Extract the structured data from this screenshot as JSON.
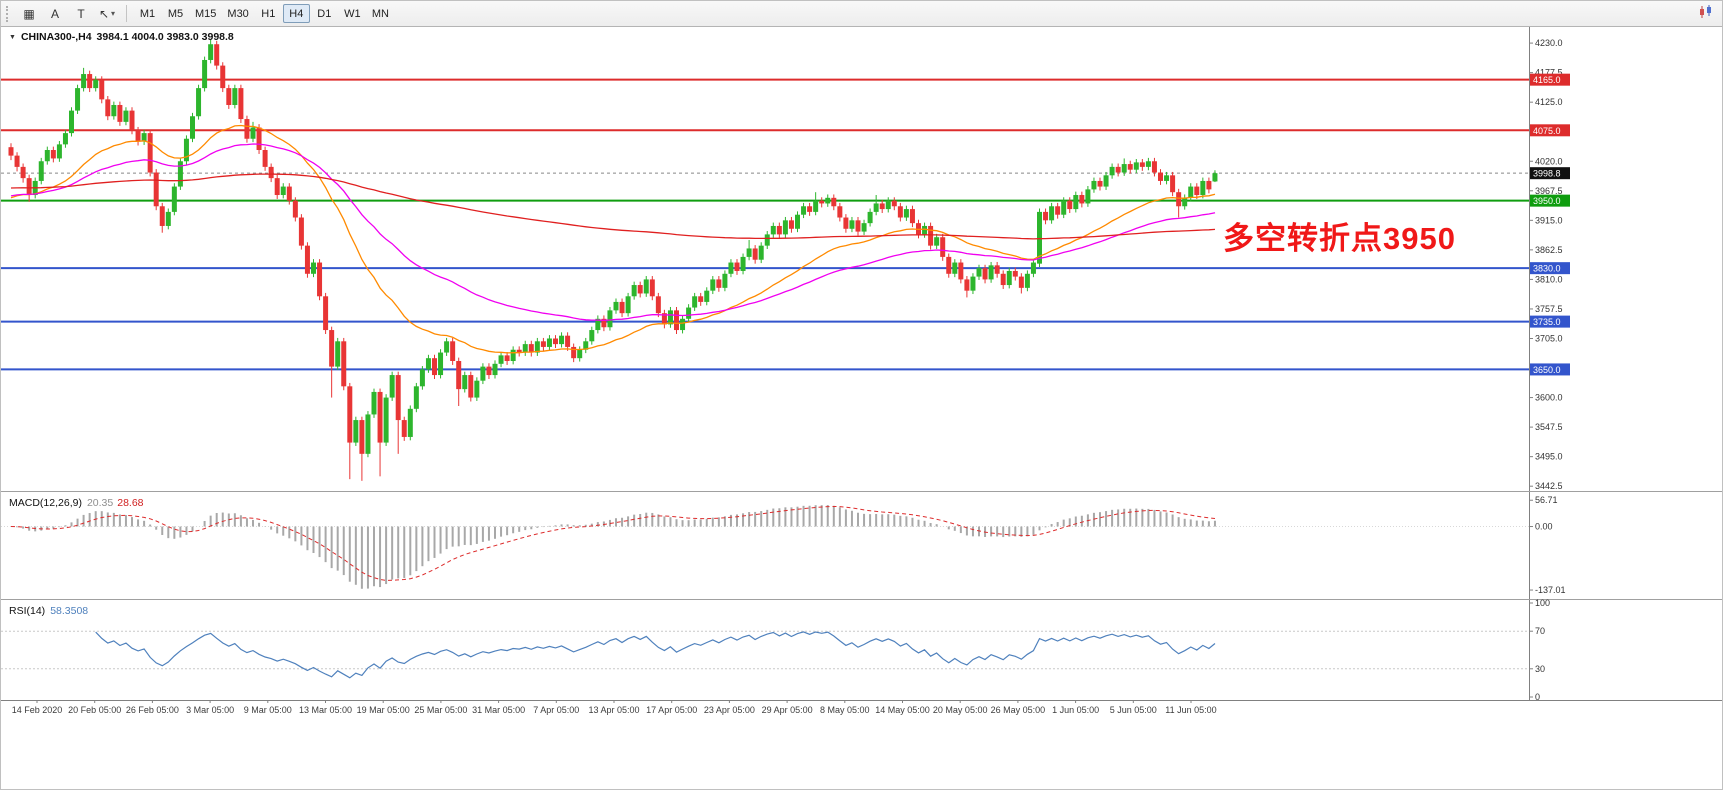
{
  "toolbar": {
    "tools": [
      {
        "name": "grid-tool",
        "glyph": "▦"
      },
      {
        "name": "text-tool",
        "glyph": "A"
      },
      {
        "name": "label-tool",
        "glyph": "T"
      },
      {
        "name": "arrows-tool",
        "glyph": "↖",
        "dropdown": true
      }
    ],
    "timeframes": [
      "M1",
      "M5",
      "M15",
      "M30",
      "H1",
      "H4",
      "D1",
      "W1",
      "MN"
    ],
    "active_timeframe": "H4"
  },
  "chart_data": {
    "type": "candlestick",
    "symbol": "CHINA300-",
    "timeframe": "H4",
    "title_symbol": "CHINA300-,H4",
    "title_values": "3984.1 4004.0 3983.0 3998.8",
    "ohlc": {
      "open": 3984.1,
      "high": 4004.0,
      "low": 3983.0,
      "close": 3998.8
    },
    "ylim": [
      3437.5,
      4251.5
    ],
    "price_ticks": [
      4230.0,
      4177.5,
      4125.0,
      4072.5,
      4020.0,
      3967.5,
      3915.0,
      3862.5,
      3810.0,
      3757.5,
      3705.0,
      3652.5,
      3600.0,
      3547.5,
      3495.0,
      3442.5
    ],
    "hlines": [
      {
        "price": 4165.0,
        "label": "4165.0",
        "color": "#DD2C2C"
      },
      {
        "price": 4075.0,
        "label": "4075.0",
        "color": "#DD2C2C"
      },
      {
        "price": 3950.0,
        "label": "3950.0",
        "color": "#0F9D0F"
      },
      {
        "price": 3830.0,
        "label": "3830.0",
        "color": "#3355CC"
      },
      {
        "price": 3735.0,
        "label": "3735.0",
        "color": "#3355CC"
      },
      {
        "price": 3650.0,
        "label": "3650.0",
        "color": "#3355CC"
      }
    ],
    "current_price": 3998.8,
    "current_price_label": "3998.8",
    "colors": {
      "up": "#2DB52D",
      "down": "#E83535"
    },
    "moving_averages": [
      {
        "period": 30,
        "color": "#FF8A00",
        "seed": 3950
      },
      {
        "period": 60,
        "color": "#F000F0",
        "seed": 3956
      },
      {
        "period": 300,
        "color": "#E02020",
        "seed": 3972
      }
    ],
    "x_labels": [
      "14 Feb 2020",
      "20 Feb 05:00",
      "26 Feb 05:00",
      "3 Mar 05:00",
      "9 Mar 05:00",
      "13 Mar 05:00",
      "19 Mar 05:00",
      "25 Mar 05:00",
      "31 Mar 05:00",
      "7 Apr 05:00",
      "13 Apr 05:00",
      "17 Apr 05:00",
      "23 Apr 05:00",
      "29 Apr 05:00",
      "8 May 05:00",
      "14 May 05:00",
      "20 May 05:00",
      "26 May 05:00",
      "1 Jun 05:00",
      "5 Jun 05:00",
      "11 Jun 05:00"
    ],
    "macd": {
      "label": "MACD(12,26,9)",
      "value_str": "20.35",
      "signal_str": "28.68",
      "fast": 12,
      "slow": 26,
      "signal": 9,
      "scale_labels": [
        "56.71",
        "0.00",
        "-137.01"
      ],
      "scale_values": [
        56.71,
        0,
        -137.01
      ],
      "ylim": [
        -152,
        68
      ],
      "hist_color": "#a8a8a8",
      "signal_color": "#DD2C2C"
    },
    "rsi": {
      "label": "RSI(14)",
      "value_str": "58.3508",
      "period": 14,
      "levels": [
        70,
        30
      ],
      "scale_values": [
        100,
        70,
        30,
        0
      ],
      "ylim": [
        0,
        100
      ],
      "color": "#4F81BD"
    },
    "annotation": {
      "text": "多空转折点3950",
      "color": "#F01818"
    },
    "candles": [
      [
        4045,
        4052,
        4022,
        4030
      ],
      [
        4030,
        4036,
        4002,
        4010
      ],
      [
        4010,
        4016,
        3982,
        3990
      ],
      [
        3990,
        3996,
        3948,
        3960
      ],
      [
        3960,
        3991,
        3954,
        3985
      ],
      [
        3985,
        4026,
        3979,
        4020
      ],
      [
        4020,
        4046,
        4014,
        4040
      ],
      [
        4040,
        4046,
        4018,
        4025
      ],
      [
        4025,
        4056,
        4019,
        4050
      ],
      [
        4050,
        4076,
        4044,
        4070
      ],
      [
        4070,
        4116,
        4064,
        4110
      ],
      [
        4110,
        4156,
        4104,
        4150
      ],
      [
        4150,
        4186,
        4144,
        4175
      ],
      [
        4175,
        4181,
        4143,
        4150
      ],
      [
        4150,
        4171,
        4144,
        4165
      ],
      [
        4165,
        4171,
        4123,
        4130
      ],
      [
        4130,
        4136,
        4093,
        4100
      ],
      [
        4100,
        4126,
        4094,
        4120
      ],
      [
        4120,
        4126,
        4083,
        4090
      ],
      [
        4090,
        4116,
        4084,
        4110
      ],
      [
        4110,
        4116,
        4068,
        4075
      ],
      [
        4075,
        4081,
        4048,
        4055
      ],
      [
        4055,
        4076,
        4049,
        4070
      ],
      [
        4070,
        4076,
        3993,
        4000
      ],
      [
        4000,
        4006,
        3933,
        3940
      ],
      [
        3940,
        3946,
        3893,
        3905
      ],
      [
        3905,
        3936,
        3899,
        3930
      ],
      [
        3930,
        3981,
        3924,
        3975
      ],
      [
        3975,
        4026,
        3969,
        4020
      ],
      [
        4020,
        4066,
        4014,
        4060
      ],
      [
        4060,
        4106,
        4054,
        4100
      ],
      [
        4100,
        4156,
        4094,
        4150
      ],
      [
        4150,
        4206,
        4144,
        4200
      ],
      [
        4200,
        4236,
        4194,
        4228
      ],
      [
        4228,
        4234,
        4183,
        4190
      ],
      [
        4190,
        4196,
        4143,
        4150
      ],
      [
        4150,
        4156,
        4113,
        4120
      ],
      [
        4120,
        4156,
        4114,
        4150
      ],
      [
        4150,
        4156,
        4088,
        4095
      ],
      [
        4095,
        4101,
        4053,
        4060
      ],
      [
        4060,
        4090,
        4054,
        4080
      ],
      [
        4080,
        4086,
        4033,
        4040
      ],
      [
        4040,
        4046,
        4003,
        4010
      ],
      [
        4010,
        4016,
        3983,
        3990
      ],
      [
        3990,
        3996,
        3953,
        3960
      ],
      [
        3960,
        3981,
        3954,
        3975
      ],
      [
        3975,
        3981,
        3943,
        3950
      ],
      [
        3950,
        3956,
        3913,
        3920
      ],
      [
        3920,
        3926,
        3863,
        3870
      ],
      [
        3870,
        3876,
        3813,
        3820
      ],
      [
        3820,
        3846,
        3814,
        3840
      ],
      [
        3840,
        3846,
        3773,
        3780
      ],
      [
        3780,
        3786,
        3713,
        3720
      ],
      [
        3720,
        3726,
        3600,
        3655
      ],
      [
        3655,
        3706,
        3649,
        3700
      ],
      [
        3700,
        3706,
        3613,
        3620
      ],
      [
        3620,
        3626,
        3455,
        3520
      ],
      [
        3520,
        3566,
        3514,
        3560
      ],
      [
        3560,
        3566,
        3452,
        3500
      ],
      [
        3500,
        3576,
        3494,
        3570
      ],
      [
        3570,
        3616,
        3564,
        3610
      ],
      [
        3610,
        3616,
        3460,
        3520
      ],
      [
        3520,
        3606,
        3514,
        3600
      ],
      [
        3600,
        3646,
        3594,
        3640
      ],
      [
        3640,
        3646,
        3500,
        3560
      ],
      [
        3560,
        3566,
        3523,
        3530
      ],
      [
        3530,
        3586,
        3524,
        3580
      ],
      [
        3580,
        3626,
        3574,
        3620
      ],
      [
        3620,
        3656,
        3614,
        3650
      ],
      [
        3650,
        3676,
        3644,
        3670
      ],
      [
        3670,
        3676,
        3633,
        3640
      ],
      [
        3640,
        3686,
        3634,
        3680
      ],
      [
        3680,
        3706,
        3674,
        3700
      ],
      [
        3700,
        3706,
        3658,
        3665
      ],
      [
        3665,
        3671,
        3585,
        3615
      ],
      [
        3615,
        3646,
        3609,
        3640
      ],
      [
        3640,
        3646,
        3593,
        3600
      ],
      [
        3600,
        3636,
        3594,
        3630
      ],
      [
        3630,
        3661,
        3624,
        3655
      ],
      [
        3655,
        3661,
        3633,
        3640
      ],
      [
        3640,
        3666,
        3634,
        3660
      ],
      [
        3660,
        3681,
        3654,
        3675
      ],
      [
        3675,
        3681,
        3658,
        3665
      ],
      [
        3665,
        3691,
        3659,
        3685
      ],
      [
        3685,
        3691,
        3673,
        3680
      ],
      [
        3680,
        3701,
        3674,
        3695
      ],
      [
        3695,
        3701,
        3673,
        3680
      ],
      [
        3680,
        3706,
        3674,
        3700
      ],
      [
        3700,
        3706,
        3683,
        3690
      ],
      [
        3690,
        3711,
        3684,
        3705
      ],
      [
        3705,
        3711,
        3688,
        3695
      ],
      [
        3695,
        3716,
        3689,
        3710
      ],
      [
        3710,
        3716,
        3683,
        3690
      ],
      [
        3690,
        3696,
        3663,
        3670
      ],
      [
        3670,
        3691,
        3664,
        3685
      ],
      [
        3685,
        3706,
        3679,
        3700
      ],
      [
        3700,
        3726,
        3694,
        3720
      ],
      [
        3720,
        3746,
        3714,
        3740
      ],
      [
        3740,
        3746,
        3718,
        3725
      ],
      [
        3725,
        3761,
        3719,
        3755
      ],
      [
        3755,
        3776,
        3749,
        3770
      ],
      [
        3770,
        3776,
        3743,
        3750
      ],
      [
        3750,
        3786,
        3744,
        3780
      ],
      [
        3780,
        3806,
        3774,
        3800
      ],
      [
        3800,
        3806,
        3778,
        3785
      ],
      [
        3785,
        3816,
        3779,
        3810
      ],
      [
        3810,
        3816,
        3773,
        3780
      ],
      [
        3780,
        3786,
        3743,
        3750
      ],
      [
        3750,
        3756,
        3723,
        3730
      ],
      [
        3730,
        3761,
        3724,
        3755
      ],
      [
        3755,
        3761,
        3713,
        3720
      ],
      [
        3720,
        3746,
        3714,
        3740
      ],
      [
        3740,
        3766,
        3734,
        3760
      ],
      [
        3760,
        3786,
        3754,
        3780
      ],
      [
        3780,
        3786,
        3763,
        3770
      ],
      [
        3770,
        3796,
        3764,
        3790
      ],
      [
        3790,
        3816,
        3784,
        3810
      ],
      [
        3810,
        3816,
        3788,
        3795
      ],
      [
        3795,
        3826,
        3789,
        3820
      ],
      [
        3820,
        3846,
        3814,
        3840
      ],
      [
        3840,
        3846,
        3818,
        3825
      ],
      [
        3825,
        3856,
        3819,
        3850
      ],
      [
        3850,
        3880,
        3844,
        3865
      ],
      [
        3865,
        3871,
        3838,
        3845
      ],
      [
        3845,
        3876,
        3839,
        3870
      ],
      [
        3870,
        3896,
        3864,
        3890
      ],
      [
        3890,
        3911,
        3884,
        3905
      ],
      [
        3905,
        3911,
        3883,
        3890
      ],
      [
        3890,
        3921,
        3884,
        3915
      ],
      [
        3915,
        3921,
        3893,
        3900
      ],
      [
        3900,
        3931,
        3894,
        3925
      ],
      [
        3925,
        3946,
        3919,
        3940
      ],
      [
        3940,
        3946,
        3923,
        3930
      ],
      [
        3930,
        3965,
        3924,
        3950
      ],
      [
        3950,
        3956,
        3938,
        3945
      ],
      [
        3945,
        3961,
        3939,
        3955
      ],
      [
        3955,
        3961,
        3933,
        3940
      ],
      [
        3940,
        3946,
        3913,
        3920
      ],
      [
        3920,
        3926,
        3893,
        3900
      ],
      [
        3900,
        3921,
        3894,
        3915
      ],
      [
        3915,
        3921,
        3888,
        3895
      ],
      [
        3895,
        3916,
        3889,
        3910
      ],
      [
        3910,
        3936,
        3904,
        3930
      ],
      [
        3930,
        3960,
        3924,
        3945
      ],
      [
        3945,
        3951,
        3928,
        3935
      ],
      [
        3935,
        3956,
        3929,
        3950
      ],
      [
        3950,
        3956,
        3933,
        3940
      ],
      [
        3940,
        3946,
        3913,
        3920
      ],
      [
        3920,
        3941,
        3914,
        3935
      ],
      [
        3935,
        3941,
        3903,
        3910
      ],
      [
        3910,
        3916,
        3883,
        3890
      ],
      [
        3890,
        3911,
        3884,
        3905
      ],
      [
        3905,
        3911,
        3863,
        3870
      ],
      [
        3870,
        3891,
        3864,
        3885
      ],
      [
        3885,
        3891,
        3843,
        3850
      ],
      [
        3850,
        3856,
        3813,
        3820
      ],
      [
        3820,
        3846,
        3814,
        3840
      ],
      [
        3840,
        3846,
        3803,
        3810
      ],
      [
        3810,
        3816,
        3778,
        3790
      ],
      [
        3790,
        3821,
        3784,
        3815
      ],
      [
        3815,
        3836,
        3809,
        3830
      ],
      [
        3830,
        3836,
        3803,
        3810
      ],
      [
        3810,
        3841,
        3804,
        3835
      ],
      [
        3835,
        3841,
        3813,
        3820
      ],
      [
        3820,
        3826,
        3793,
        3800
      ],
      [
        3800,
        3831,
        3794,
        3825
      ],
      [
        3825,
        3831,
        3808,
        3815
      ],
      [
        3815,
        3821,
        3785,
        3795
      ],
      [
        3795,
        3826,
        3789,
        3820
      ],
      [
        3820,
        3846,
        3814,
        3840
      ],
      [
        3838,
        3936,
        3832,
        3930
      ],
      [
        3930,
        3936,
        3908,
        3915
      ],
      [
        3915,
        3946,
        3909,
        3940
      ],
      [
        3940,
        3946,
        3918,
        3925
      ],
      [
        3925,
        3956,
        3919,
        3950
      ],
      [
        3950,
        3956,
        3928,
        3935
      ],
      [
        3935,
        3966,
        3929,
        3960
      ],
      [
        3960,
        3966,
        3938,
        3945
      ],
      [
        3945,
        3976,
        3939,
        3970
      ],
      [
        3970,
        3991,
        3964,
        3985
      ],
      [
        3985,
        3991,
        3968,
        3975
      ],
      [
        3975,
        4001,
        3969,
        3995
      ],
      [
        3995,
        4016,
        3989,
        4010
      ],
      [
        4010,
        4016,
        3993,
        4000
      ],
      [
        4000,
        4025,
        3994,
        4015
      ],
      [
        4015,
        4021,
        3998,
        4005
      ],
      [
        4005,
        4024,
        3999,
        4018
      ],
      [
        4018,
        4024,
        4003,
        4010
      ],
      [
        4010,
        4026,
        4004,
        4020
      ],
      [
        4020,
        4026,
        3993,
        4000
      ],
      [
        4000,
        4006,
        3978,
        3985
      ],
      [
        3985,
        4001,
        3979,
        3995
      ],
      [
        3995,
        4001,
        3958,
        3965
      ],
      [
        3965,
        3971,
        3920,
        3940
      ],
      [
        3940,
        3961,
        3934,
        3955
      ],
      [
        3955,
        3981,
        3949,
        3975
      ],
      [
        3975,
        3981,
        3953,
        3960
      ],
      [
        3960,
        3991,
        3954,
        3985
      ],
      [
        3985,
        3991,
        3963,
        3970
      ],
      [
        3984.1,
        4004,
        3983,
        3998.8
      ]
    ]
  }
}
